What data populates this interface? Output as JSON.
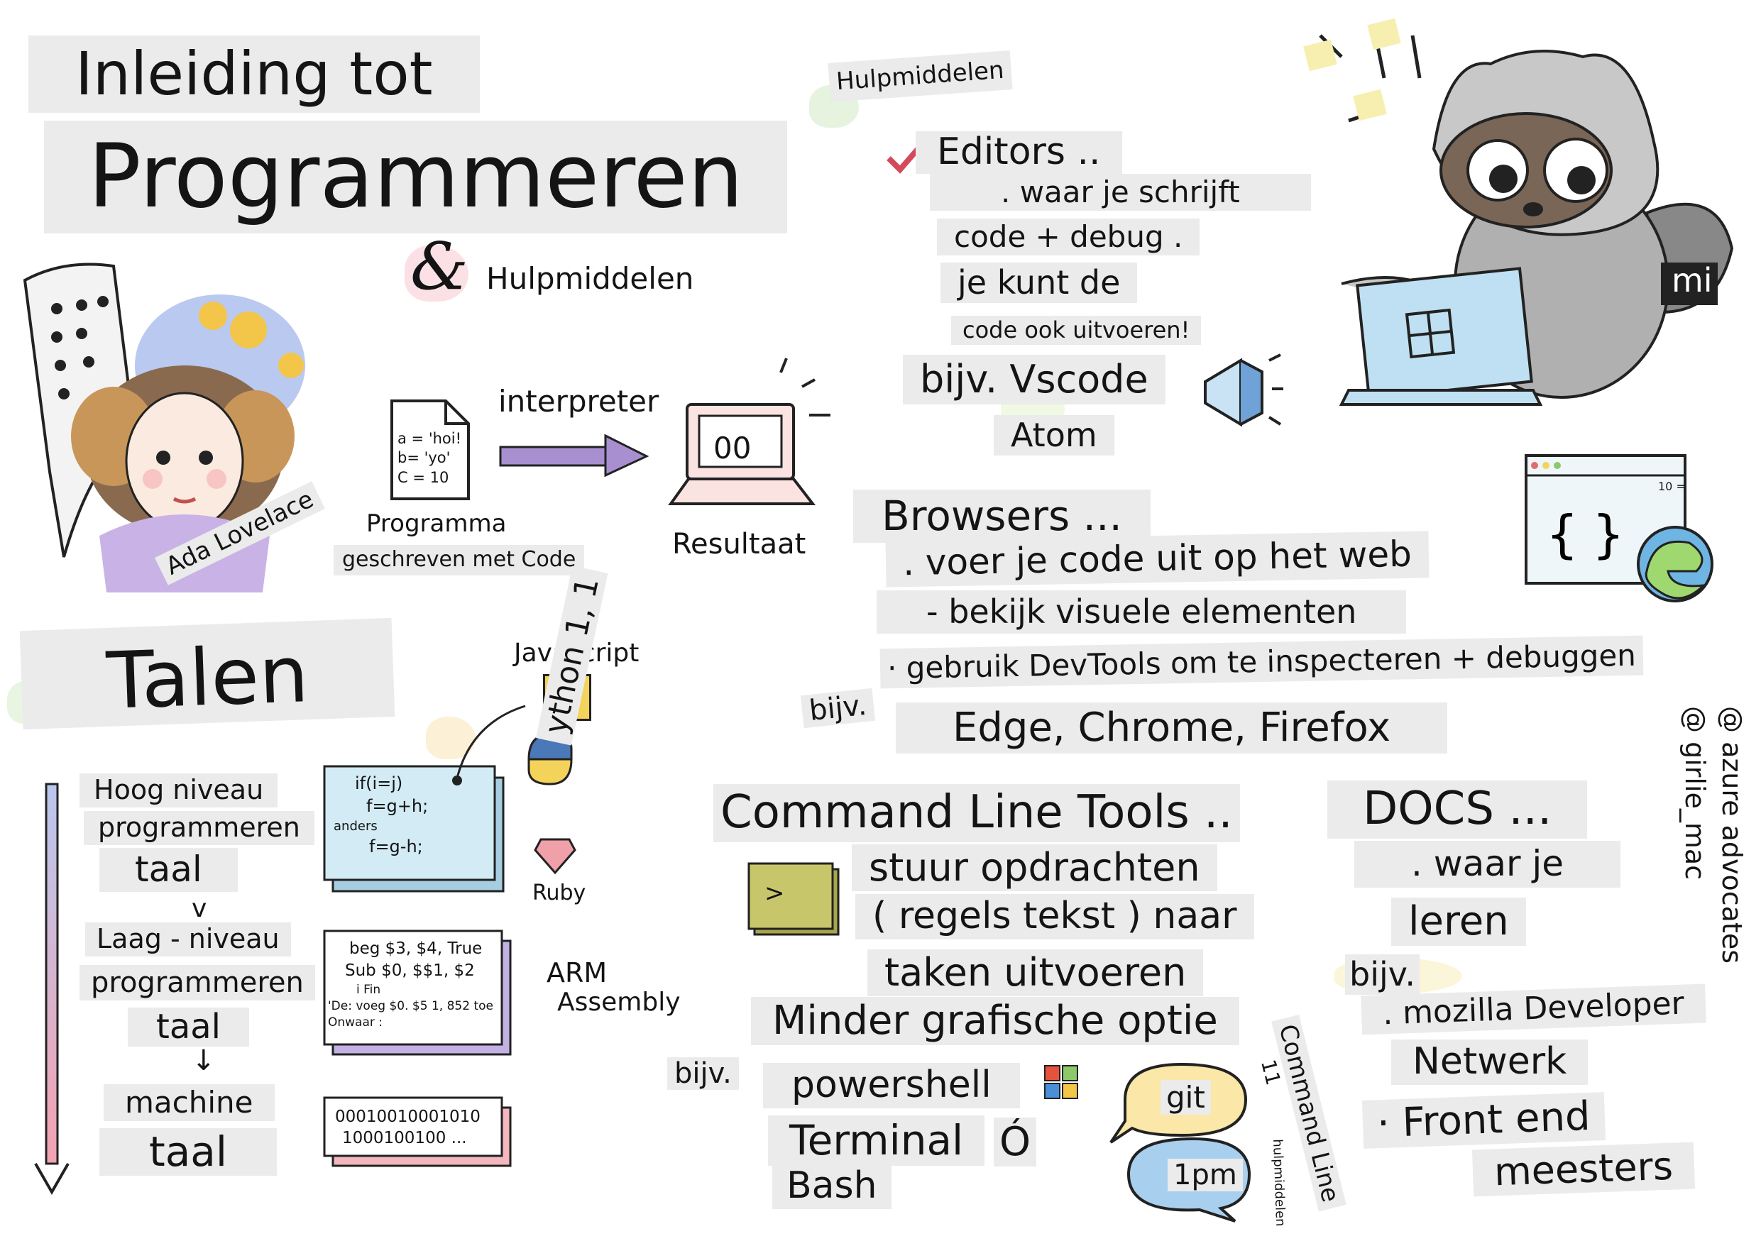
{
  "title": {
    "line1": "Inleiding tot",
    "line2": "Programmeren"
  },
  "intro": {
    "ampersand": "&",
    "tools_label": "Hulpmiddelen",
    "interpreter": "interpreter",
    "code_lines": [
      "a = 'hoi!",
      "b= 'yo'",
      "C = 10"
    ],
    "program_label": "Programma",
    "program_sub": "geschreven met Code",
    "screen_value": "00",
    "result_label": "Resultaat",
    "ada_name": "Ada Lovelace"
  },
  "languages": {
    "title": "Talen",
    "high": [
      "Hoog niveau",
      "programmeren",
      "taal"
    ],
    "v": "v",
    "low": [
      "Laag - niveau",
      "programmeren",
      "taal"
    ],
    "down_arrow": "↓",
    "machine": [
      "machine",
      "taal"
    ],
    "card_high": [
      "if(i=j)",
      "f=g+h;",
      "anders",
      "f=g-h;"
    ],
    "card_asm": [
      "beg $3, $4, True",
      "Sub $0, $$1, $2",
      "i Fin",
      "'De: voeg $0. $5 1, 852 toe",
      "Onwaar :"
    ],
    "card_bin": [
      "00010010001010",
      "1000100100 ..."
    ],
    "javascript": "Javascript",
    "js_badge": "JS",
    "python": "ython 1, 1",
    "ruby": "Ruby",
    "arm": [
      "ARM",
      "Assembly"
    ]
  },
  "tools": {
    "heading": "Hulpmiddelen",
    "editors": {
      "title": "Editors ..",
      "lines": [
        ". waar je schrijft",
        "code + debug .",
        "je kunt de",
        "code ook uitvoeren!"
      ],
      "example": "bijv. Vscode",
      "atom": "Atom"
    },
    "browsers": {
      "title": "Browsers ...",
      "lines": [
        ". voer je code uit op het web",
        "- bekijk visuele elementen",
        "· gebruik DevTools om te inspecteren + debuggen"
      ],
      "bijv": "bijv.",
      "examples": "Edge, Chrome, Firefox",
      "window_tab": "10 ="
    },
    "cli": {
      "title": "Command Line Tools ..",
      "lines": [
        "stuur opdrachten",
        "( regels tekst ) naar",
        "taken uitvoeren",
        "Minder grafische optie"
      ],
      "bijv": "bijv.",
      "examples": [
        "powershell",
        "Terminal",
        "Bash"
      ],
      "terminal_prompt": ">",
      "bubble_git": "git",
      "bubble_npm": "1pm",
      "vertical": "Command Line",
      "vertical_sub": "hulpmiddelen",
      "vertical_num": "11"
    },
    "docs": {
      "title": "DOCS ...",
      "lines": [
        ". waar je",
        "leren"
      ],
      "bijv": "bijv.",
      "examples": [
        ". mozilla Developer",
        "Netwerk",
        "· Front end",
        "meesters"
      ]
    }
  },
  "credits": [
    "@ azure advocates",
    "@ girlie_mac"
  ],
  "mascot_badge": "mi",
  "colors": {
    "label_bg": "#ebebeb",
    "purple_arrow": "#a890d0",
    "js_yellow": "#f3d35a",
    "pink": "#f0a0a8",
    "terminal_green": "#c8c66a",
    "card_blue": "#cfe8f2",
    "card_purple": "#dccdf0",
    "card_pink": "#f6c9cf"
  },
  "icons": [
    "checkmark-icon",
    "vscode-icon",
    "windows-icon",
    "apple-icon",
    "edge-icon",
    "python-icon",
    "ruby-icon",
    "laptop-icon",
    "raccoon-mascot"
  ]
}
